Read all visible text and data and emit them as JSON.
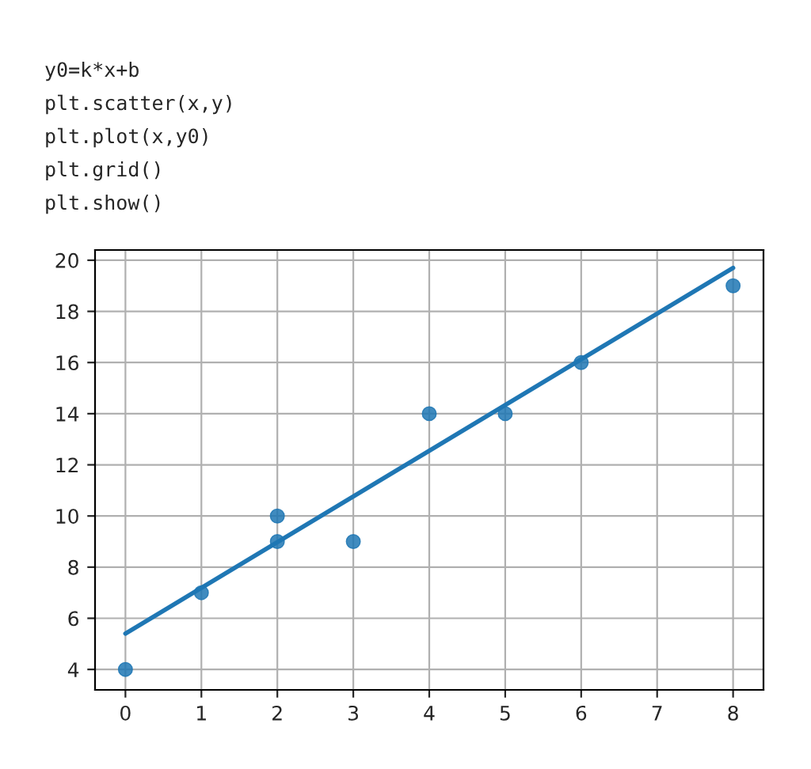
{
  "chart_data": {
    "type": "scatter",
    "annotations": [
      "y0=k*x+b",
      "plt.scatter(x,y)",
      "plt.plot(x,y0)",
      "plt.grid()",
      "plt.show()"
    ],
    "series": [
      {
        "color": "#1f77b4",
        "marker": "circle",
        "x": [
          0,
          1,
          2,
          2,
          3,
          4,
          5,
          6,
          8
        ],
        "values": [
          4,
          7,
          9,
          10,
          9,
          14,
          14,
          16,
          19
        ]
      },
      {
        "type": "line",
        "color": "#1f77b4",
        "line_style": "solid",
        "x": [
          0,
          8
        ],
        "values": [
          5.4,
          19.7
        ]
      }
    ],
    "xlim": [
      -0.4,
      8.4
    ],
    "ylim": [
      3.2,
      20.4
    ],
    "xticks": [
      0,
      1,
      2,
      3,
      4,
      5,
      6,
      7,
      8
    ],
    "yticks": [
      4,
      6,
      8,
      10,
      12,
      14,
      16,
      18,
      20
    ],
    "grid": true
  }
}
